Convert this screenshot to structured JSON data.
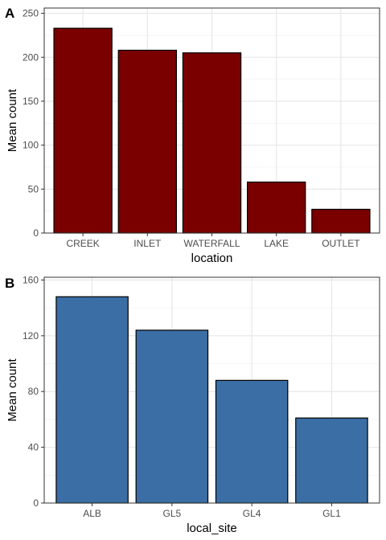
{
  "chart_data": [
    {
      "type": "bar",
      "panel_label": "A",
      "categories": [
        "CREEK",
        "INLET",
        "WATERFALL",
        "LAKE",
        "OUTLET"
      ],
      "values": [
        233,
        208,
        205,
        58,
        27
      ],
      "xlabel": "location",
      "ylabel": "Mean count",
      "ylim": [
        0,
        256
      ],
      "yticks": [
        0,
        50,
        100,
        150,
        200,
        250
      ],
      "bar_color": "#7a0000",
      "grid": true
    },
    {
      "type": "bar",
      "panel_label": "B",
      "categories": [
        "ALB",
        "GL5",
        "GL4",
        "GL1"
      ],
      "values": [
        148,
        124,
        88,
        61
      ],
      "xlabel": "local_site",
      "ylabel": "Mean count",
      "ylim": [
        0,
        162
      ],
      "yticks": [
        0,
        40,
        80,
        120,
        160
      ],
      "bar_color": "#3a6ea5",
      "grid": true
    }
  ]
}
